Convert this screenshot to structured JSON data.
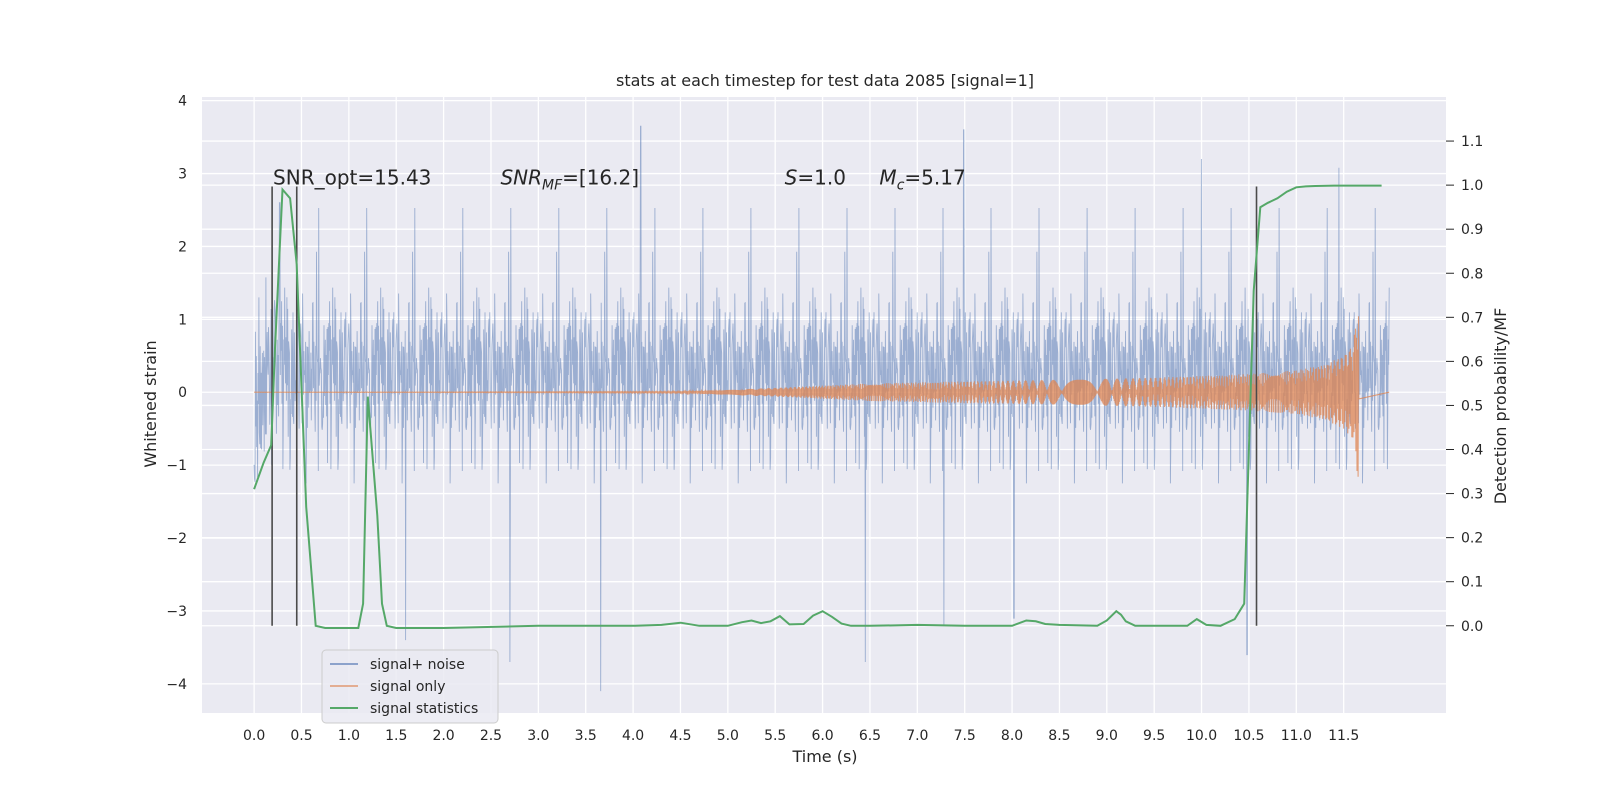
{
  "chart_data": {
    "type": "line",
    "title": "stats at each timestep for test data 2085 [signal=1]",
    "xlabel": "Time (s)",
    "ylabel": "Whitened strain",
    "y2label": "Detection probability/MF",
    "xlim": [
      -0.55,
      12.58
    ],
    "ylim": [
      -4.4,
      4.05
    ],
    "y2lim": [
      -0.198,
      1.2
    ],
    "x_ticks": [
      "0.0",
      "0.5",
      "1.0",
      "1.5",
      "2.0",
      "2.5",
      "3.0",
      "3.5",
      "4.0",
      "4.5",
      "5.0",
      "5.5",
      "6.0",
      "6.5",
      "7.0",
      "7.5",
      "8.0",
      "8.5",
      "9.0",
      "9.5",
      "10.0",
      "10.5",
      "11.0",
      "11.5"
    ],
    "y_ticks": [
      "4",
      "3",
      "2",
      "1",
      "0",
      "−1",
      "−2",
      "−3",
      "−4"
    ],
    "y2_ticks": [
      "1.1",
      "1.0",
      "0.9",
      "0.8",
      "0.7",
      "0.6",
      "0.5",
      "0.4",
      "0.3",
      "0.2",
      "0.1",
      "0.0"
    ],
    "grid": true,
    "legend_position": "lower-left",
    "annotations": [
      {
        "text": "SNR_opt=15.43",
        "x": 0.2,
        "y": 2.85
      },
      {
        "text": "SNR_MF=[16.2]",
        "x": 2.6,
        "y": 2.85
      },
      {
        "text": "S=1.0",
        "x": 5.6,
        "y": 2.85
      },
      {
        "text": "M_c=5.17",
        "x": 6.6,
        "y": 2.85
      }
    ],
    "vertical_lines": [
      0.19,
      0.45,
      10.58
    ],
    "series": [
      {
        "name": "signal+ noise",
        "color": "#4c72b0",
        "axis": "left",
        "description": "whitened noisy strain, dense oscillation mostly within ±1.6 with peaks near ±3.7",
        "x_range": [
          0.0,
          11.98
        ],
        "envelope": [
          -1.6,
          1.6
        ],
        "spikes": [
          {
            "x": 0.27,
            "y": 2.6
          },
          {
            "x": 1.6,
            "y": -3.4
          },
          {
            "x": 2.7,
            "y": -3.7
          },
          {
            "x": 3.66,
            "y": -4.1
          },
          {
            "x": 4.08,
            "y": 3.65
          },
          {
            "x": 6.45,
            "y": -3.7
          },
          {
            "x": 7.49,
            "y": 3.6
          },
          {
            "x": 7.28,
            "y": -3.2
          },
          {
            "x": 8.02,
            "y": -3.1
          },
          {
            "x": 10.0,
            "y": 3.2
          },
          {
            "x": 10.48,
            "y": -3.6
          },
          {
            "x": 11.45,
            "y": 3.08
          }
        ]
      },
      {
        "name": "signal only",
        "color": "#dd8452",
        "axis": "left",
        "description": "chirp waveform with growing amplitude ending at merger",
        "amplitude_points": {
          "x": [
            0.0,
            4.5,
            5.5,
            6.5,
            7.5,
            8.5,
            9.5,
            10.5,
            11.0,
            11.3,
            11.5,
            11.6,
            11.66
          ],
          "y": [
            0.0,
            0.01,
            0.06,
            0.12,
            0.15,
            0.17,
            0.2,
            0.25,
            0.3,
            0.38,
            0.5,
            0.65,
            1.3
          ]
        },
        "end_x": 11.66
      },
      {
        "name": "signal statistics",
        "color": "#55a868",
        "axis": "right",
        "x": [
          0.0,
          0.1,
          0.18,
          0.22,
          0.3,
          0.38,
          0.45,
          0.55,
          0.65,
          0.75,
          0.9,
          1.1,
          1.15,
          1.2,
          1.3,
          1.35,
          1.4,
          1.5,
          2.0,
          3.0,
          4.0,
          4.3,
          4.5,
          4.7,
          5.0,
          5.15,
          5.25,
          5.35,
          5.45,
          5.55,
          5.65,
          5.8,
          5.9,
          6.0,
          6.1,
          6.2,
          6.3,
          6.5,
          7.0,
          7.5,
          8.0,
          8.15,
          8.25,
          8.35,
          8.5,
          8.9,
          9.0,
          9.1,
          9.15,
          9.2,
          9.3,
          9.6,
          9.85,
          9.95,
          10.05,
          10.2,
          10.35,
          10.45,
          10.55,
          10.62,
          10.7,
          10.8,
          10.9,
          11.0,
          11.1,
          11.2,
          11.4,
          11.6,
          11.8,
          11.9
        ],
        "y": [
          0.31,
          0.37,
          0.41,
          0.63,
          0.99,
          0.97,
          0.82,
          0.27,
          0.0,
          -0.005,
          -0.005,
          -0.005,
          0.05,
          0.52,
          0.25,
          0.05,
          0.0,
          -0.005,
          -0.005,
          0.0,
          0.0,
          0.002,
          0.007,
          0.0,
          0.0,
          0.008,
          0.012,
          0.006,
          0.01,
          0.022,
          0.003,
          0.004,
          0.023,
          0.033,
          0.02,
          0.005,
          0.0,
          0.0,
          0.002,
          0.0,
          0.0,
          0.012,
          0.01,
          0.004,
          0.002,
          0.0,
          0.012,
          0.033,
          0.025,
          0.01,
          0.0,
          0.0,
          0.0,
          0.015,
          0.002,
          0.0,
          0.015,
          0.05,
          0.76,
          0.95,
          0.96,
          0.97,
          0.985,
          0.995,
          0.997,
          0.998,
          0.999,
          0.999,
          0.999,
          0.999
        ]
      }
    ]
  }
}
